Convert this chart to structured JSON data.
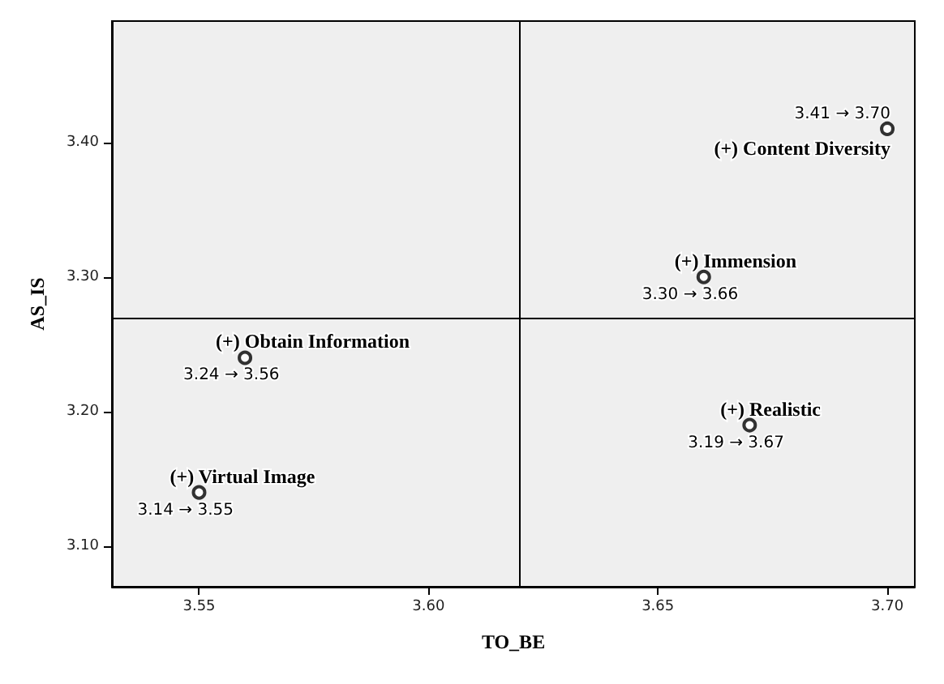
{
  "chart_data": {
    "type": "scatter",
    "xlabel": "TO_BE",
    "ylabel": "AS_IS",
    "x": [
      3.7,
      3.66,
      3.56,
      3.55,
      3.67
    ],
    "values": [
      3.41,
      3.3,
      3.24,
      3.14,
      3.19
    ],
    "color": "#000000",
    "marker": "circle",
    "xlim": [
      3.531,
      3.706
    ],
    "xticks": [
      3.55,
      {
        "value": 3.6,
        "label": "3.60"
      },
      3.65,
      {
        "value": 3.7,
        "label": "3.70"
      }
    ],
    "ylim": [
      3.07,
      3.49
    ],
    "yticks": [
      {
        "value": 3.1,
        "label": "3.10"
      },
      {
        "value": 3.2,
        "label": "3.20"
      },
      {
        "value": 3.3,
        "label": "3.30"
      },
      {
        "value": 3.4,
        "label": "3.40"
      }
    ],
    "ref_lines": [
      {
        "axis": "x",
        "value": 3.62,
        "color": "#000000"
      },
      {
        "axis": "y",
        "value": 3.27,
        "color": "#000000"
      }
    ],
    "annotations": [
      {
        "text": "3.41 → 3.70",
        "x": 3.7,
        "y": 3.41
      },
      {
        "text": "(+) Content Diversity",
        "x": 3.7,
        "y": 3.41
      },
      {
        "text": "(+) Immension",
        "x": 3.66,
        "y": 3.3
      },
      {
        "text": "3.30 → 3.66",
        "x": 3.66,
        "y": 3.3
      },
      {
        "text": "(+) Obtain Information",
        "x": 3.56,
        "y": 3.24
      },
      {
        "text": "3.24 → 3.56",
        "x": 3.56,
        "y": 3.24
      },
      {
        "text": "(+) Virtual Image",
        "x": 3.55,
        "y": 3.14
      },
      {
        "text": "3.14 → 3.55",
        "x": 3.55,
        "y": 3.14
      },
      {
        "text": "(+) Realistic",
        "x": 3.67,
        "y": 3.19
      },
      {
        "text": "3.19 → 3.67",
        "x": 3.67,
        "y": 3.19
      }
    ],
    "grid": false
  }
}
